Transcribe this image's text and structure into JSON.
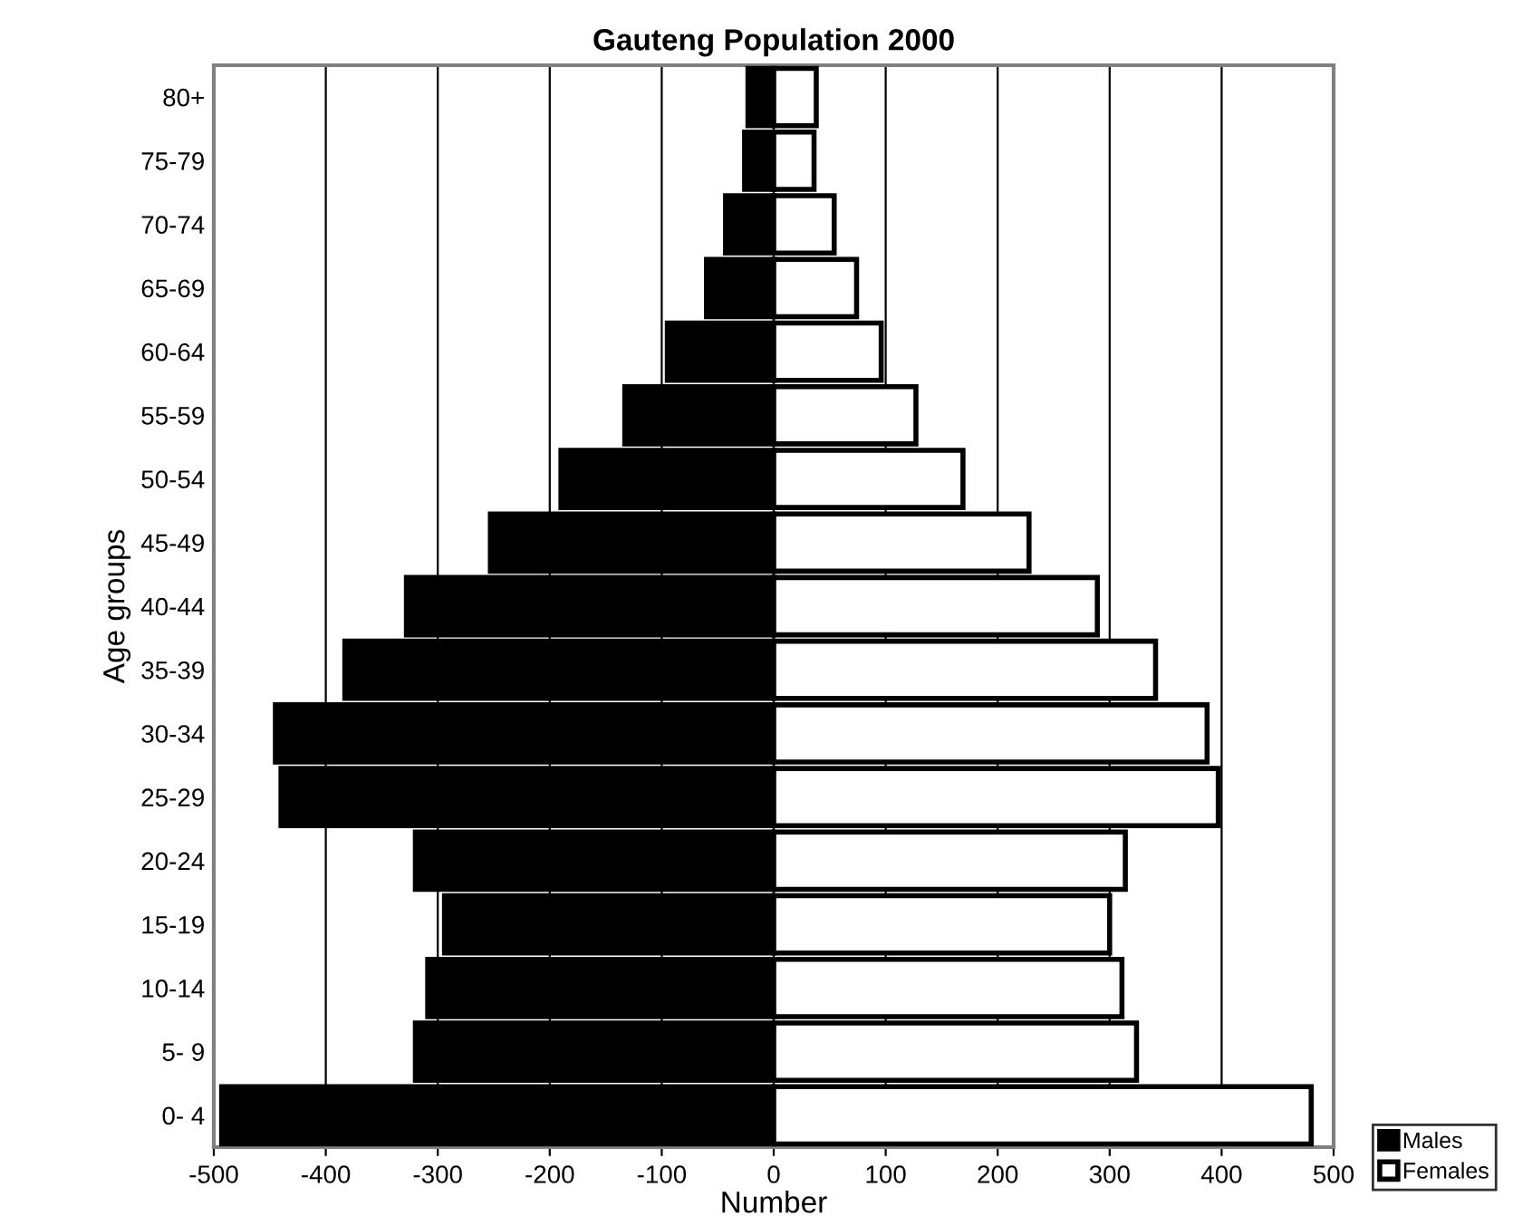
{
  "chart_data": {
    "type": "bar",
    "orientation": "horizontal",
    "title": "Gauteng Population 2000",
    "xlabel": "Number",
    "ylabel": "Age groups",
    "categories": [
      "80+",
      "75-79",
      "70-74",
      "65-69",
      "60-64",
      "55-59",
      "50-54",
      "45-49",
      "40-44",
      "35-39",
      "30-34",
      "25-29",
      "20-24",
      "15-19",
      "10-14",
      "5- 9",
      "0- 4"
    ],
    "series": [
      {
        "name": "Males",
        "color": "#000000",
        "values": [
          -23,
          -26,
          -43,
          -60,
          -95,
          -133,
          -190,
          -253,
          -328,
          -383,
          -445,
          -440,
          -320,
          -294,
          -309,
          -320,
          -493
        ]
      },
      {
        "name": "Females",
        "color": "#ffffff",
        "values": [
          38,
          36,
          54,
          74,
          96,
          127,
          169,
          228,
          289,
          341,
          387,
          397,
          314,
          300,
          311,
          324,
          480
        ]
      }
    ],
    "stacked": true,
    "xlim": [
      -500,
      500
    ],
    "xticks": [
      -500,
      -400,
      -300,
      -200,
      -100,
      0,
      100,
      200,
      300,
      400,
      500
    ],
    "grid": "x",
    "legend": "bottom right"
  }
}
